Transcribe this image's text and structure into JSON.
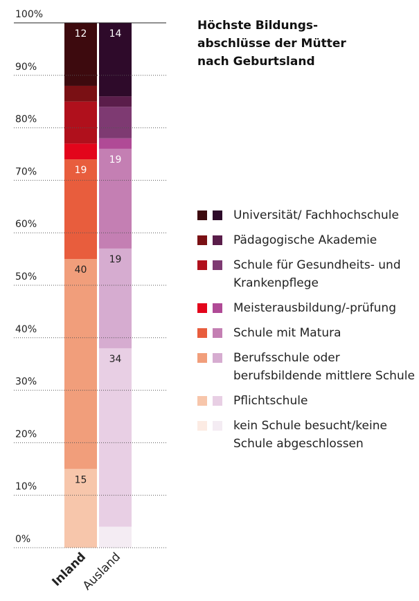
{
  "chart_data": {
    "type": "stacked_bar",
    "title_lines": [
      "Höchste Bildungs-",
      "abschlüsse der Mütter",
      "nach Geburtsland"
    ],
    "categories": [
      "Inland",
      "Ausland"
    ],
    "ylim": [
      0,
      100
    ],
    "yticks": [
      {
        "value": 0,
        "label": "0%"
      },
      {
        "value": 10,
        "label": "10%"
      },
      {
        "value": 20,
        "label": "20%"
      },
      {
        "value": 30,
        "label": "30%"
      },
      {
        "value": 40,
        "label": "40%"
      },
      {
        "value": 50,
        "label": "50%"
      },
      {
        "value": 60,
        "label": "60%"
      },
      {
        "value": 70,
        "label": "70%"
      },
      {
        "value": 80,
        "label": "80%"
      },
      {
        "value": 90,
        "label": "90%"
      },
      {
        "value": 100,
        "label": "100%"
      }
    ],
    "grid": true,
    "series": [
      {
        "name": "kein Schule besucht/keine Schule abgeschlossen",
        "colors": [
          "#fcebe3",
          "#f4ecf3"
        ],
        "values": [
          0,
          4
        ],
        "value_labels": [
          null,
          null
        ]
      },
      {
        "name": "Pflichtschule",
        "colors": [
          "#f7c6ab",
          "#e8cfe4"
        ],
        "values": [
          15,
          34
        ],
        "value_labels": [
          "15",
          "34"
        ]
      },
      {
        "name": "Berufsschule oder berufsbildende mittlere Schule",
        "colors": [
          "#f19e7b",
          "#d6acd0"
        ],
        "values": [
          40,
          19
        ],
        "value_labels": [
          "40",
          "19"
        ]
      },
      {
        "name": "Schule mit Matura",
        "colors": [
          "#e85d3d",
          "#c47fb3"
        ],
        "values": [
          19,
          19
        ],
        "value_labels": [
          "19",
          "19"
        ]
      },
      {
        "name": "Meisterausbildung/-prüfung",
        "colors": [
          "#e3051b",
          "#b04a96"
        ],
        "values": [
          3,
          2
        ],
        "value_labels": [
          null,
          null
        ]
      },
      {
        "name": "Schule für Gesundheits- und Krankenpflege",
        "colors": [
          "#b0101c",
          "#7e3a72"
        ],
        "values": [
          8,
          6
        ],
        "value_labels": [
          null,
          null
        ]
      },
      {
        "name": "Pädagogische Akademie",
        "colors": [
          "#7a1014",
          "#5a1d4a"
        ],
        "values": [
          3,
          2
        ],
        "value_labels": [
          null,
          null
        ]
      },
      {
        "name": "Universität/ Fachhochschule",
        "colors": [
          "#3d0a0e",
          "#2e0a2a"
        ],
        "values": [
          12,
          14
        ],
        "value_labels": [
          "12",
          "14"
        ]
      }
    ]
  }
}
